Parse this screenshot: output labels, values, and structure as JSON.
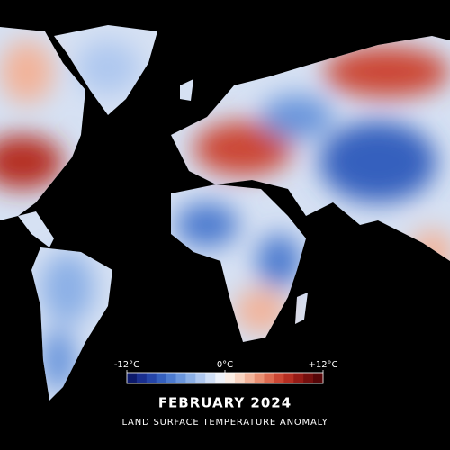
{
  "map": {
    "title": "FEBRUARY 2024",
    "subtitle": "LAND SURFACE TEMPERATURE ANOMALY",
    "colorbar": {
      "range": [
        -12,
        12
      ],
      "ticks": [
        {
          "value": -12,
          "label": "-12°C"
        },
        {
          "value": 0,
          "label": "0°C"
        },
        {
          "value": 12,
          "label": "+12°C"
        }
      ],
      "colors": [
        "#0d1a6b",
        "#1a2f8f",
        "#2545a8",
        "#3560be",
        "#4d7bcf",
        "#6b96dc",
        "#8cb0e6",
        "#afc8ef",
        "#d0dff6",
        "#eef2fa",
        "#fbeee6",
        "#f8d4c2",
        "#f2b39a",
        "#e98f72",
        "#dd6a50",
        "#cc4734",
        "#b52e22",
        "#961b16",
        "#750f0e",
        "#560608"
      ]
    }
  }
}
